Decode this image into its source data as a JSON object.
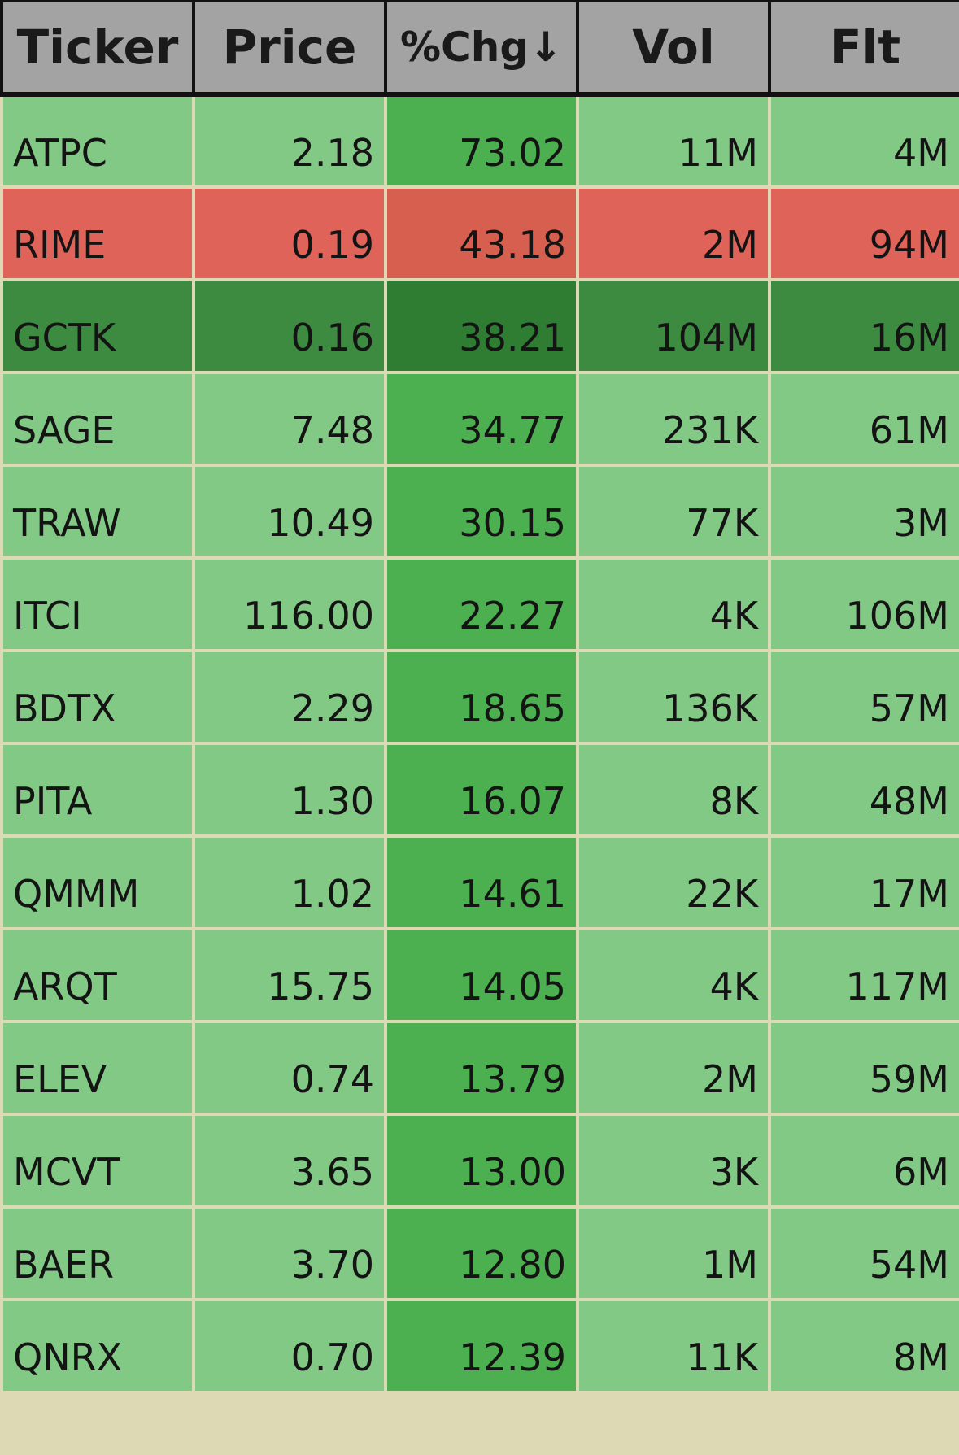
{
  "columns": [
    {
      "key": "ticker",
      "label": "Ticker"
    },
    {
      "key": "price",
      "label": "Price"
    },
    {
      "key": "chg",
      "label": "%Chg↓"
    },
    {
      "key": "vol",
      "label": "Vol"
    },
    {
      "key": "flt",
      "label": "Flt"
    }
  ],
  "colors": {
    "header_bg": "#a3a3a3",
    "grid_lines": "#dcd9b4",
    "green_light": "#83c986",
    "green_medium": "#4caf50",
    "green_dark": "#3c8b40",
    "green_darker": "#2f7d32",
    "red": "#e06359",
    "red_medium": "#d75f50"
  },
  "rows": [
    {
      "ticker": "ATPC",
      "price": "2.18",
      "chg": "73.02",
      "vol": "11M",
      "flt": "4M",
      "colors": {
        "ticker": "#83c986",
        "price": "#83c986",
        "chg": "#4caf50",
        "vol": "#83c986",
        "flt": "#83c986"
      }
    },
    {
      "ticker": "RIME",
      "price": "0.19",
      "chg": "43.18",
      "vol": "2M",
      "flt": "94M",
      "colors": {
        "ticker": "#e06359",
        "price": "#e06359",
        "chg": "#d75f50",
        "vol": "#e06359",
        "flt": "#e06359"
      }
    },
    {
      "ticker": "GCTK",
      "price": "0.16",
      "chg": "38.21",
      "vol": "104M",
      "flt": "16M",
      "colors": {
        "ticker": "#3c8b40",
        "price": "#3c8b40",
        "chg": "#2f7d32",
        "vol": "#3c8b40",
        "flt": "#3c8b40"
      }
    },
    {
      "ticker": "SAGE",
      "price": "7.48",
      "chg": "34.77",
      "vol": "231K",
      "flt": "61M",
      "colors": {
        "ticker": "#83c986",
        "price": "#83c986",
        "chg": "#4caf50",
        "vol": "#83c986",
        "flt": "#83c986"
      }
    },
    {
      "ticker": "TRAW",
      "price": "10.49",
      "chg": "30.15",
      "vol": "77K",
      "flt": "3M",
      "colors": {
        "ticker": "#83c986",
        "price": "#83c986",
        "chg": "#4caf50",
        "vol": "#83c986",
        "flt": "#83c986"
      }
    },
    {
      "ticker": "ITCI",
      "price": "116.00",
      "chg": "22.27",
      "vol": "4K",
      "flt": "106M",
      "colors": {
        "ticker": "#83c986",
        "price": "#83c986",
        "chg": "#4caf50",
        "vol": "#83c986",
        "flt": "#83c986"
      }
    },
    {
      "ticker": "BDTX",
      "price": "2.29",
      "chg": "18.65",
      "vol": "136K",
      "flt": "57M",
      "colors": {
        "ticker": "#83c986",
        "price": "#83c986",
        "chg": "#4caf50",
        "vol": "#83c986",
        "flt": "#83c986"
      }
    },
    {
      "ticker": "PITA",
      "price": "1.30",
      "chg": "16.07",
      "vol": "8K",
      "flt": "48M",
      "colors": {
        "ticker": "#83c986",
        "price": "#83c986",
        "chg": "#4caf50",
        "vol": "#83c986",
        "flt": "#83c986"
      }
    },
    {
      "ticker": "QMMM",
      "price": "1.02",
      "chg": "14.61",
      "vol": "22K",
      "flt": "17M",
      "colors": {
        "ticker": "#83c986",
        "price": "#83c986",
        "chg": "#4caf50",
        "vol": "#83c986",
        "flt": "#83c986"
      }
    },
    {
      "ticker": "ARQT",
      "price": "15.75",
      "chg": "14.05",
      "vol": "4K",
      "flt": "117M",
      "colors": {
        "ticker": "#83c986",
        "price": "#83c986",
        "chg": "#4caf50",
        "vol": "#83c986",
        "flt": "#83c986"
      }
    },
    {
      "ticker": "ELEV",
      "price": "0.74",
      "chg": "13.79",
      "vol": "2M",
      "flt": "59M",
      "colors": {
        "ticker": "#83c986",
        "price": "#83c986",
        "chg": "#4caf50",
        "vol": "#83c986",
        "flt": "#83c986"
      }
    },
    {
      "ticker": "MCVT",
      "price": "3.65",
      "chg": "13.00",
      "vol": "3K",
      "flt": "6M",
      "colors": {
        "ticker": "#83c986",
        "price": "#83c986",
        "chg": "#4caf50",
        "vol": "#83c986",
        "flt": "#83c986"
      }
    },
    {
      "ticker": "BAER",
      "price": "3.70",
      "chg": "12.80",
      "vol": "1M",
      "flt": "54M",
      "colors": {
        "ticker": "#83c986",
        "price": "#83c986",
        "chg": "#4caf50",
        "vol": "#83c986",
        "flt": "#83c986"
      }
    },
    {
      "ticker": "QNRX",
      "price": "0.70",
      "chg": "12.39",
      "vol": "11K",
      "flt": "8M",
      "colors": {
        "ticker": "#83c986",
        "price": "#83c986",
        "chg": "#4caf50",
        "vol": "#83c986",
        "flt": "#83c986"
      }
    }
  ]
}
